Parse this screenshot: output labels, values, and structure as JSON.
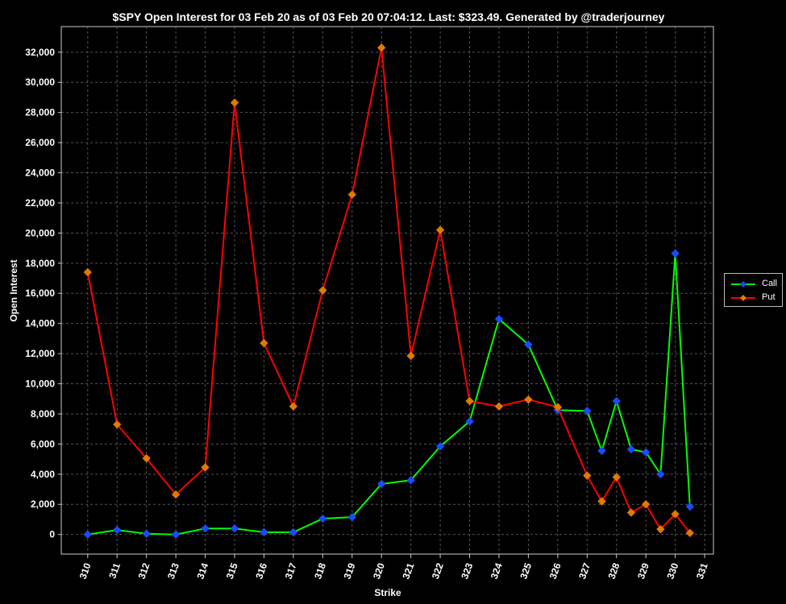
{
  "colors": {
    "background": "#000000",
    "grid": "#555555",
    "plot_border": "#cccccc",
    "call_line": "#00ff00",
    "call_marker": "#1a4cff",
    "put_line": "#ff0000",
    "put_marker": "#e07b00"
  },
  "chart_data": {
    "type": "line",
    "title": "$SPY Open Interest for 03 Feb 20 as of 03 Feb 20 07:04:12.  Last: $323.49.  Generated by @traderjourney",
    "xlabel": "Strike",
    "ylabel": "Open Interest",
    "xlim": [
      309.1,
      331.3
    ],
    "ylim": [
      -1300,
      33700
    ],
    "x_ticks": [
      310,
      311,
      312,
      313,
      314,
      315,
      316,
      317,
      318,
      319,
      320,
      321,
      322,
      323,
      324,
      325,
      326,
      327,
      328,
      329,
      330,
      331
    ],
    "y_ticks": [
      0,
      2000,
      4000,
      6000,
      8000,
      10000,
      12000,
      14000,
      16000,
      18000,
      20000,
      22000,
      24000,
      26000,
      28000,
      30000,
      32000
    ],
    "y_tick_labels": [
      "0",
      "2,000",
      "4,000",
      "6,000",
      "8,000",
      "10,000",
      "12,000",
      "14,000",
      "16,000",
      "18,000",
      "20,000",
      "22,000",
      "24,000",
      "26,000",
      "28,000",
      "30,000",
      "32,000"
    ],
    "grid": true,
    "legend_position": "right",
    "series": [
      {
        "name": "Call",
        "points": [
          [
            310,
            0
          ],
          [
            311,
            300
          ],
          [
            312,
            50
          ],
          [
            313,
            0
          ],
          [
            314,
            400
          ],
          [
            315,
            400
          ],
          [
            316,
            150
          ],
          [
            317,
            150
          ],
          [
            318,
            1050
          ],
          [
            319,
            1150
          ],
          [
            320,
            3350
          ],
          [
            321,
            3600
          ],
          [
            322,
            5850
          ],
          [
            323,
            7500
          ],
          [
            324,
            14300
          ],
          [
            325,
            12600
          ],
          [
            326,
            8250
          ],
          [
            327,
            8200
          ],
          [
            327.5,
            5550
          ],
          [
            328,
            8850
          ],
          [
            328.5,
            5650
          ],
          [
            329,
            5450
          ],
          [
            329.5,
            4000
          ],
          [
            330,
            18650
          ],
          [
            330.5,
            1850
          ]
        ]
      },
      {
        "name": "Put",
        "points": [
          [
            310,
            17400
          ],
          [
            311,
            7300
          ],
          [
            312,
            5050
          ],
          [
            313,
            2650
          ],
          [
            314,
            4450
          ],
          [
            315,
            28650
          ],
          [
            316,
            12700
          ],
          [
            317,
            8500
          ],
          [
            318,
            16200
          ],
          [
            319,
            22550
          ],
          [
            320,
            32300
          ],
          [
            321,
            11850
          ],
          [
            322,
            20200
          ],
          [
            323,
            8850
          ],
          [
            324,
            8500
          ],
          [
            325,
            8950
          ],
          [
            326,
            8450
          ],
          [
            327,
            3900
          ],
          [
            327.5,
            2200
          ],
          [
            328,
            3800
          ],
          [
            328.5,
            1450
          ],
          [
            329,
            2000
          ],
          [
            329.5,
            350
          ],
          [
            330,
            1350
          ],
          [
            330.5,
            100
          ]
        ]
      }
    ]
  }
}
